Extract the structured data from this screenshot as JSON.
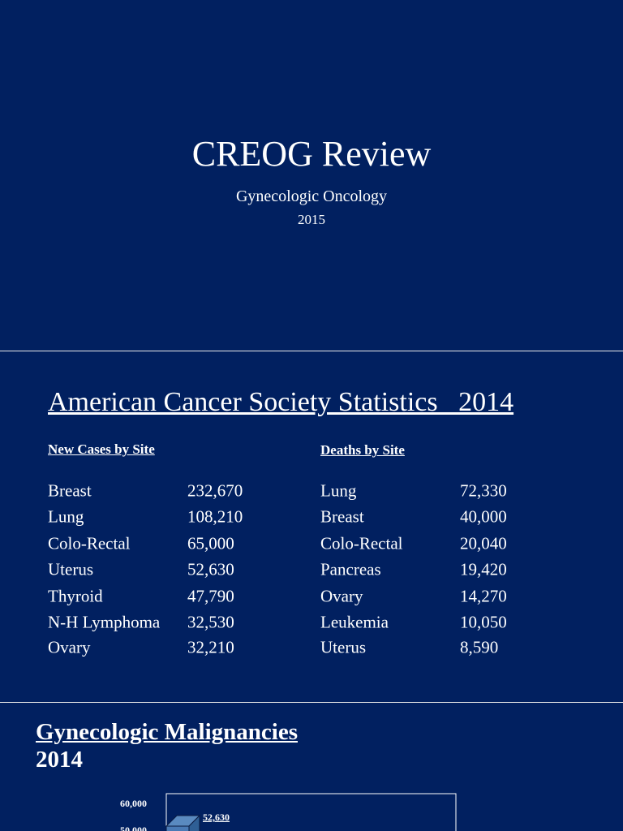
{
  "slides": [
    {
      "title": "CREOG Review",
      "subtitle": "Gynecologic Oncology",
      "year": "2015"
    },
    {
      "title": "American Cancer Society Statistics   2014",
      "new_cases": {
        "heading": "New Cases by Site",
        "rows": [
          [
            "Breast",
            "232,670"
          ],
          [
            "Lung",
            "108,210"
          ],
          [
            "Colo-Rectal",
            "65,000"
          ],
          [
            "Uterus",
            "52,630"
          ],
          [
            "Thyroid",
            "47,790"
          ],
          [
            "N-H Lymphoma",
            "32,530"
          ],
          [
            "Ovary",
            "32,210"
          ]
        ]
      },
      "deaths": {
        "heading": "Deaths by Site",
        "rows": [
          [
            "Lung",
            "72,330"
          ],
          [
            "Breast",
            "40,000"
          ],
          [
            "Colo-Rectal",
            "20,040"
          ],
          [
            "Pancreas",
            "19,420"
          ],
          [
            "Ovary",
            "14,270"
          ],
          [
            "Leukemia",
            "10,050"
          ],
          [
            "Uterus",
            "8,590"
          ]
        ]
      }
    },
    {
      "title": "Gynecologic Malignancies",
      "year": "2014",
      "chart": {
        "yticks": [
          "60,000",
          "50,000"
        ],
        "bar_label": "52,630"
      }
    }
  ]
}
